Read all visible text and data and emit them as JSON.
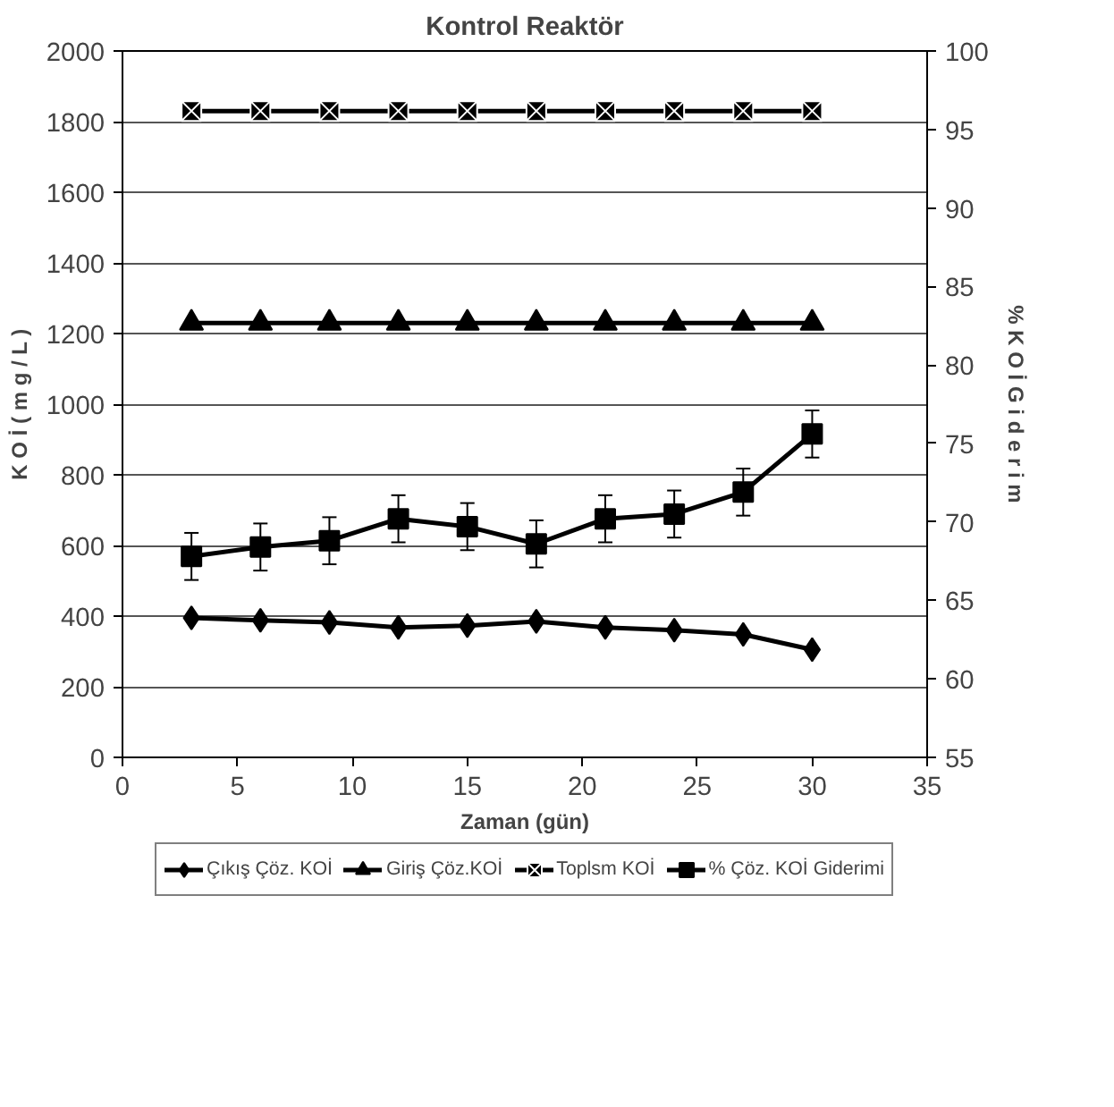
{
  "chart_data": {
    "type": "line",
    "title": "Kontrol Reaktör",
    "xlabel": "Zaman (gün)",
    "ylabel": "K O İ ( m g / L )",
    "y2label": "% K O İ G i d e r i m",
    "x": [
      3,
      6,
      9,
      12,
      15,
      18,
      21,
      24,
      27,
      30
    ],
    "xlim": [
      0,
      35
    ],
    "xticks": [
      0,
      5,
      10,
      15,
      20,
      25,
      30,
      35
    ],
    "ylim": [
      0,
      2000
    ],
    "yticks": [
      0,
      200,
      400,
      600,
      800,
      1000,
      1200,
      1400,
      1600,
      1800,
      2000
    ],
    "y2lim": [
      55,
      100
    ],
    "y2ticks": [
      55,
      60,
      65,
      70,
      75,
      80,
      85,
      90,
      95,
      100
    ],
    "grid": "y",
    "legend": "bottom",
    "line_style": "solid",
    "series": [
      {
        "name": "Çıkış Çöz. KOİ",
        "color": "#000000",
        "marker": "diamond",
        "values": [
          395,
          388,
          382,
          368,
          373,
          385,
          368,
          360,
          348,
          305
        ]
      },
      {
        "name": "Giriş Çöz.KOİ",
        "color": "#000000",
        "marker": "triangle",
        "values": [
          1230,
          1230,
          1230,
          1230,
          1230,
          1230,
          1230,
          1230,
          1230,
          1230
        ]
      },
      {
        "name": "Toplsm KOİ",
        "color": "#000000",
        "marker": "cross",
        "values": [
          1830,
          1830,
          1830,
          1830,
          1830,
          1830,
          1830,
          1830,
          1830,
          1830
        ]
      },
      {
        "name": "% Çöz. KOİ Giderimi",
        "color": "#000000",
        "marker": "square",
        "axis": "y2",
        "values": [
          67.8,
          68.4,
          68.8,
          70.2,
          69.7,
          68.6,
          70.2,
          70.5,
          71.9,
          75.6
        ],
        "errors": [
          1.5,
          1.5,
          1.5,
          1.5,
          1.5,
          1.5,
          1.5,
          1.5,
          1.5,
          1.5
        ]
      }
    ]
  }
}
